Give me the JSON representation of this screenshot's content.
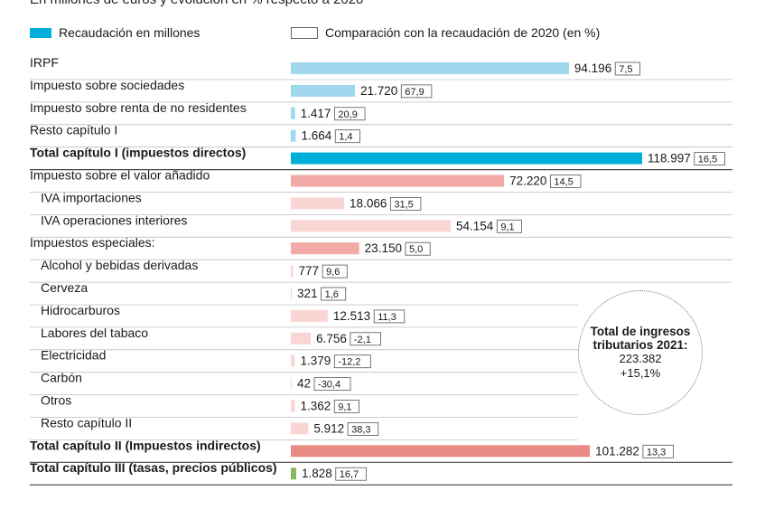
{
  "subtitle": "En millones de euros y evolución en % respecto a 2020",
  "legend": {
    "filled": "Recaudación en millones",
    "outline": "Comparación con la recaudación de 2020 (en %)"
  },
  "colors": {
    "direct_light": "#9fd7ec",
    "direct_total": "#00b0da",
    "indirect_mid": "#f2aaa6",
    "indirect_light": "#f9d6d3",
    "indirect_total": "#e98a85",
    "capIII": "#8ab85f"
  },
  "callout": {
    "title": "Total de ingresos tributarios 2021:",
    "value": "223.382",
    "change": "+15,1%"
  },
  "chart_data": {
    "type": "bar",
    "orientation": "horizontal",
    "title": "",
    "xlabel": "",
    "ylabel": "",
    "categories": [
      "IRPF",
      "Impuesto sobre sociedades",
      "Impuesto sobre renta de no residentes",
      "Resto capítulo I",
      "Total capítulo I (impuestos directos)",
      "Impuesto sobre el valor añadido",
      "IVA importaciones",
      "IVA operaciones interiores",
      "Impuestos especiales:",
      "Alcohol y bebidas derivadas",
      "Cerveza",
      "Hidrocarburos",
      "Labores del tabaco",
      "Electricidad",
      "Carbón",
      "Otros",
      "Resto capítulo II",
      "Total capítulo II (Impuestos indirectos)",
      "Total capítulo III (tasas, precios públicos)"
    ],
    "values": [
      94196,
      21720,
      1417,
      1664,
      118997,
      72220,
      18066,
      54154,
      23150,
      777,
      321,
      12513,
      6756,
      1379,
      42,
      1362,
      5912,
      101282,
      1828
    ],
    "value_labels": [
      "94.196",
      "21.720",
      "1.417",
      "1.664",
      "118.997",
      "72.220",
      "18.066",
      "54.154",
      "23.150",
      "777",
      "321",
      "12.513",
      "6.756",
      "1.379",
      "42",
      "1.362",
      "5.912",
      "101.282",
      "1.828"
    ],
    "pct_change": [
      7.5,
      67.9,
      20.9,
      1.4,
      16.5,
      14.5,
      31.5,
      9.1,
      5.0,
      9.6,
      1.6,
      11.3,
      -2.1,
      -12.2,
      -30.4,
      9.1,
      38.3,
      13.3,
      16.7
    ],
    "pct_labels": [
      "7,5",
      "67,9",
      "20,9",
      "1,4",
      "16,5",
      "14,5",
      "31,5",
      "9,1",
      "5,0",
      "9,6",
      "1,6",
      "11,3",
      "-2,1",
      "-12,2",
      "-30,4",
      "9,1",
      "38,3",
      "13,3",
      "16,7"
    ],
    "indent": [
      false,
      false,
      false,
      false,
      false,
      false,
      true,
      true,
      false,
      true,
      true,
      true,
      true,
      true,
      true,
      true,
      true,
      false,
      false
    ],
    "bold": [
      false,
      false,
      false,
      false,
      true,
      false,
      false,
      false,
      false,
      false,
      false,
      false,
      false,
      false,
      false,
      false,
      false,
      true,
      true
    ],
    "color_key": [
      "direct_light",
      "direct_light",
      "direct_light",
      "direct_light",
      "direct_total",
      "indirect_mid",
      "indirect_light",
      "indirect_light",
      "indirect_mid",
      "indirect_light",
      "indirect_light",
      "indirect_light",
      "indirect_light",
      "indirect_light",
      "indirect_light",
      "indirect_light",
      "indirect_light",
      "indirect_total",
      "capIII"
    ],
    "xlim": [
      0,
      119000
    ],
    "grid": false,
    "legend_position": "top"
  }
}
